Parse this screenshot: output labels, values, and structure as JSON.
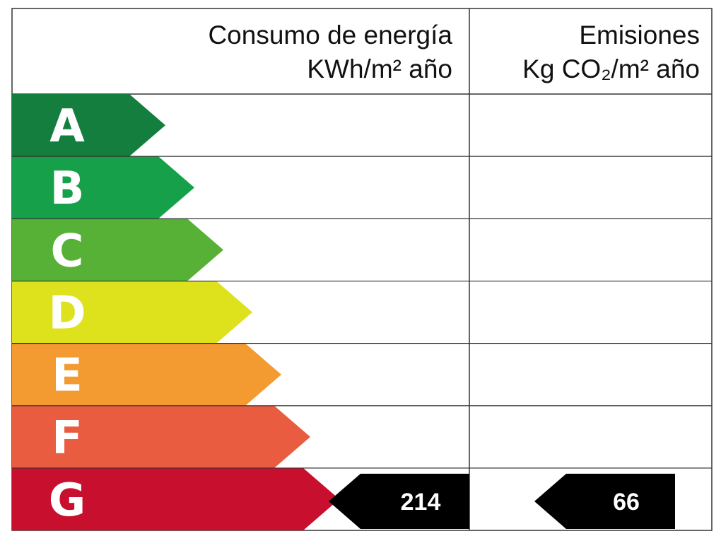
{
  "header": {
    "energy_title": "Consumo de energía",
    "energy_unit": "KWh/m² año",
    "emissions_title": "Emisiones",
    "emissions_unit": "Kg CO₂/m² año"
  },
  "ratings": [
    {
      "letter": "A",
      "color": "#137e3e"
    },
    {
      "letter": "B",
      "color": "#17a04a"
    },
    {
      "letter": "C",
      "color": "#56b136"
    },
    {
      "letter": "D",
      "color": "#dde21c"
    },
    {
      "letter": "E",
      "color": "#f39a31"
    },
    {
      "letter": "F",
      "color": "#e95c40"
    },
    {
      "letter": "G",
      "color": "#c8102e"
    }
  ],
  "energy": {
    "rating": "G",
    "value": 214
  },
  "emissions": {
    "rating": "G",
    "value": 66
  }
}
